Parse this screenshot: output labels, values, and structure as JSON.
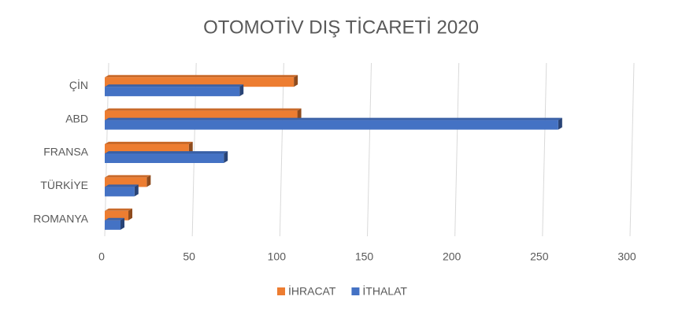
{
  "chart_data": {
    "type": "bar",
    "orientation": "horizontal",
    "title": "OTOMOTİV DIŞ TİCARETİ 2020",
    "categories": [
      "ÇİN",
      "ABD",
      "FRANSA",
      "TÜRKİYE",
      "ROMANYA"
    ],
    "series": [
      {
        "name": "İHRACAT",
        "color": "#ed7d31",
        "values": [
          108,
          110,
          48,
          24,
          13.5
        ]
      },
      {
        "name": "İTHALAT",
        "color": "#4472c4",
        "values": [
          77,
          259,
          68,
          17,
          9
        ]
      }
    ],
    "xlim": [
      0,
      300
    ],
    "xticks": [
      0,
      50,
      100,
      150,
      200,
      250,
      300
    ],
    "grid": true,
    "legend": "bottom"
  }
}
